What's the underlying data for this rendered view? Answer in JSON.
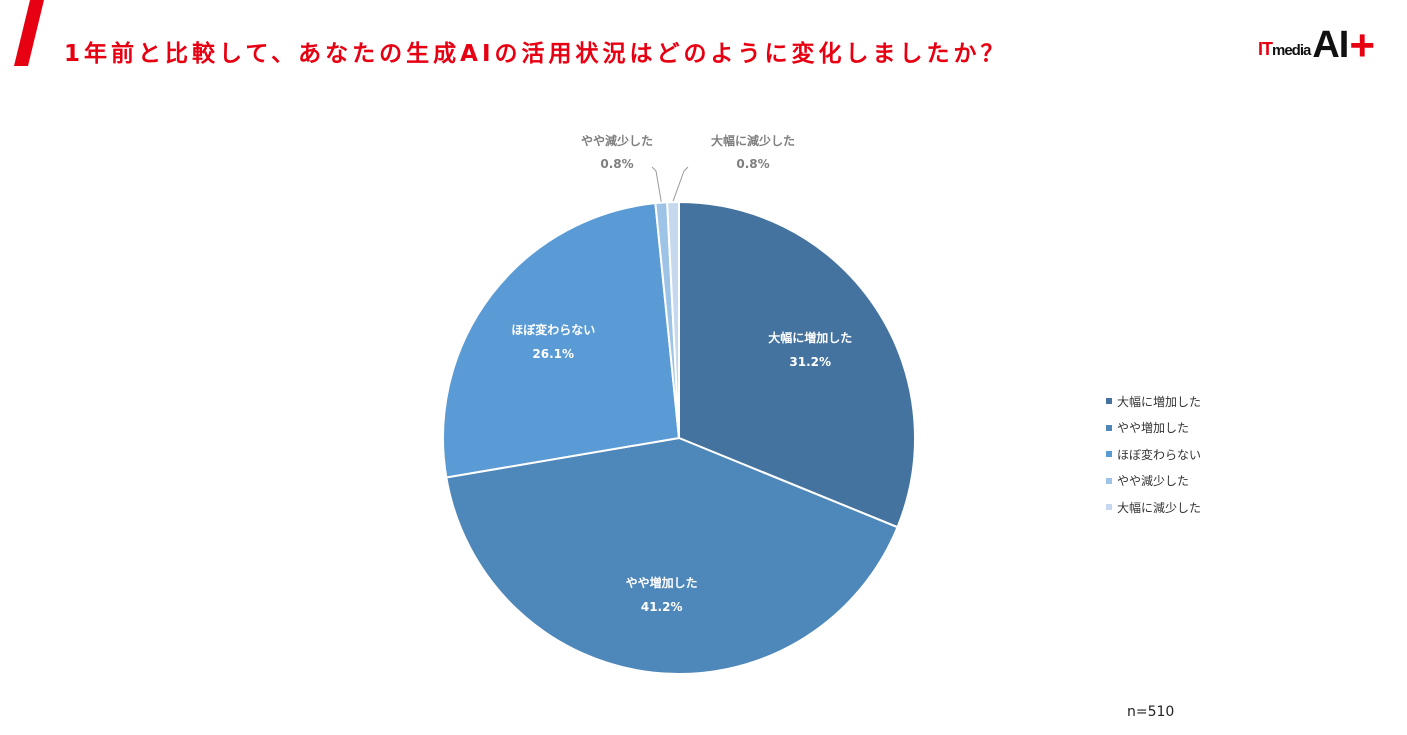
{
  "header": {
    "title": "1年前と比較して、あなたの生成AIの活用状況はどのように変化しましたか？",
    "logo": {
      "it": "IT",
      "media": "media",
      "ai": "AI",
      "plus": "+"
    }
  },
  "colors": {
    "accent": "#e60012",
    "slices": [
      "#44739f",
      "#4e87ba",
      "#5b9bd5",
      "#9dc3e6",
      "#c5d8ee"
    ]
  },
  "chart_data": {
    "type": "pie",
    "categories": [
      "大幅に増加した",
      "やや増加した",
      "ほぼ変わらない",
      "やや減少した",
      "大幅に減少した"
    ],
    "values": [
      31.2,
      41.2,
      26.1,
      0.8,
      0.8
    ],
    "value_labels": [
      "31.2%",
      "41.2%",
      "26.1%",
      "0.8%",
      "0.8%"
    ],
    "legend_position": "right",
    "start_angle": "top, clockwise"
  },
  "footnote": "n=510"
}
